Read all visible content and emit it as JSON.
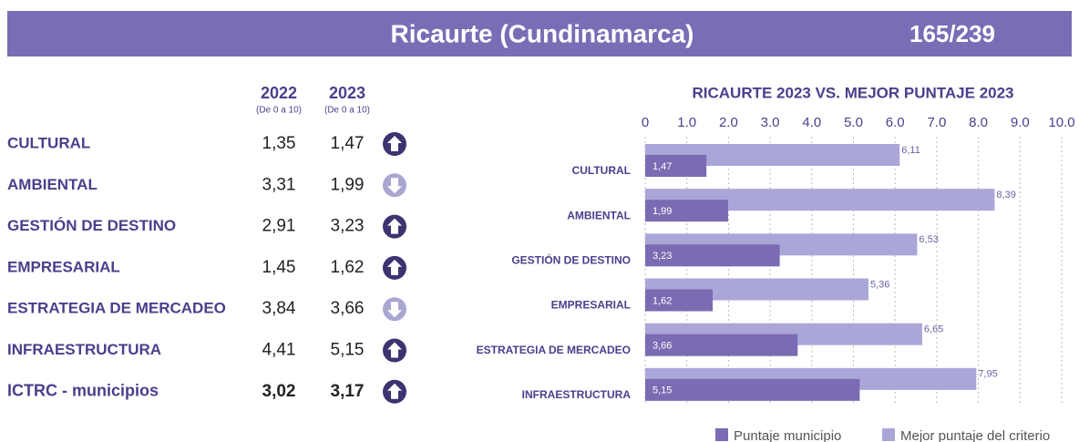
{
  "header": {
    "title": "Ricaurte (Cundinamarca)",
    "rank": "165/239"
  },
  "table": {
    "columns": [
      {
        "year": "2022",
        "note": "(De 0 a 10)"
      },
      {
        "year": "2023",
        "note": "(De 0 a 10)"
      }
    ],
    "rows": [
      {
        "label": "CULTURAL",
        "v2022": "1,35",
        "v2023": "1,47",
        "trend": "up"
      },
      {
        "label": "AMBIENTAL",
        "v2022": "3,31",
        "v2023": "1,99",
        "trend": "down"
      },
      {
        "label": "GESTIÓN DE DESTINO",
        "v2022": "2,91",
        "v2023": "3,23",
        "trend": "up"
      },
      {
        "label": "EMPRESARIAL",
        "v2022": "1,45",
        "v2023": "1,62",
        "trend": "up"
      },
      {
        "label": "ESTRATEGIA DE MERCADEO",
        "v2022": "3,84",
        "v2023": "3,66",
        "trend": "down"
      },
      {
        "label": "INFRAESTRUCTURA",
        "v2022": "4,41",
        "v2023": "5,15",
        "trend": "up"
      },
      {
        "label": "ICTRC - municipios",
        "v2022": "3,02",
        "v2023": "3,17",
        "trend": "up"
      }
    ]
  },
  "chart_data": {
    "type": "hbar",
    "title": "RICAURTE 2023 VS. MEJOR PUNTAJE 2023",
    "categories": [
      "CULTURAL",
      "AMBIENTAL",
      "GESTIÓN DE DESTINO",
      "EMPRESARIAL",
      "ESTRATEGIA DE MERCADEO",
      "INFRAESTRUCTURA"
    ],
    "series": [
      {
        "name": "Puntaje municipio",
        "color": "#7a6bb3",
        "values": [
          1.47,
          1.99,
          3.23,
          1.62,
          3.66,
          5.15
        ],
        "value_labels": [
          "1,47",
          "1,99",
          "3,23",
          "1,62",
          "3,66",
          "5,15"
        ]
      },
      {
        "name": "Mejor puntaje del criterio",
        "color": "#aba6d8",
        "values": [
          6.11,
          8.39,
          6.53,
          5.36,
          6.65,
          7.95
        ],
        "value_labels": [
          "6,11",
          "8,39",
          "6,53",
          "5,36",
          "6,65",
          "7,95"
        ]
      }
    ],
    "xlim": [
      0,
      10
    ],
    "xticks": [
      0,
      {
        "value": 1,
        "label": "1.0"
      },
      {
        "value": 2,
        "label": "2.0"
      },
      {
        "value": 3,
        "label": "3.0"
      },
      {
        "value": 4,
        "label": "4.0"
      },
      {
        "value": 5,
        "label": "5.0"
      },
      {
        "value": 6,
        "label": "6.0"
      },
      {
        "value": 7,
        "label": "7.0"
      },
      {
        "value": 8,
        "label": "8.0"
      },
      {
        "value": 9,
        "label": "9.0"
      },
      {
        "value": 10,
        "label": "10.0"
      }
    ],
    "grid": true
  }
}
